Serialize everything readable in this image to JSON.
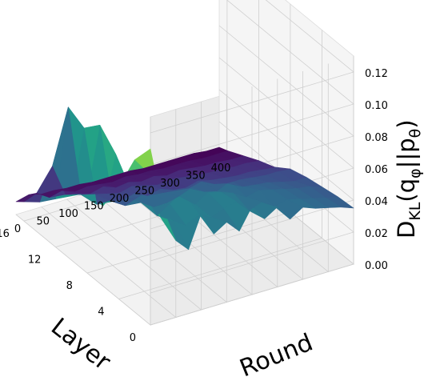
{
  "chart_data": {
    "type": "surface",
    "colormap": "viridis",
    "xlabel": "Layer",
    "ylabel": "Round",
    "zlabel": "D_KL(q_φ||p_θ)",
    "zlabel_parts": {
      "main": "D",
      "sub_kl": "KL",
      "open": "(q",
      "sub_phi": "φ",
      "mid": "||p",
      "sub_theta": "θ",
      "close": ")"
    },
    "x_ticks": [
      "0",
      "4",
      "8",
      "12",
      "16"
    ],
    "y_ticks": [
      "0",
      "50",
      "100",
      "150",
      "200",
      "250",
      "300",
      "350",
      "400"
    ],
    "z_ticks": [
      "0.00",
      "0.02",
      "0.04",
      "0.06",
      "0.08",
      "0.10",
      "0.12"
    ],
    "xlim": [
      0,
      17
    ],
    "ylim": [
      0,
      400
    ],
    "zlim": [
      0,
      0.13
    ],
    "grid": true,
    "layers": [
      0,
      2,
      4,
      6,
      8,
      10,
      12,
      14,
      16,
      17
    ],
    "rounds": [
      0,
      25,
      50,
      75,
      100,
      125,
      150,
      175,
      200,
      225,
      250,
      275,
      300,
      325,
      350,
      375,
      400
    ],
    "z": [
      [
        0.11,
        0.07,
        0.048,
        0.04,
        0.06,
        0.045,
        0.05,
        0.042,
        0.055,
        0.045,
        0.05,
        0.04,
        0.045,
        0.042,
        0.04,
        0.038,
        0.035
      ],
      [
        0.095,
        0.085,
        0.055,
        0.05,
        0.045,
        0.05,
        0.045,
        0.048,
        0.05,
        0.042,
        0.045,
        0.04,
        0.042,
        0.04,
        0.038,
        0.036,
        0.034
      ],
      [
        0.07,
        0.065,
        0.06,
        0.045,
        0.05,
        0.055,
        0.045,
        0.05,
        0.048,
        0.045,
        0.04,
        0.042,
        0.04,
        0.038,
        0.036,
        0.035,
        0.032
      ],
      [
        0.05,
        0.08,
        0.05,
        0.045,
        0.04,
        0.04,
        0.042,
        0.045,
        0.04,
        0.038,
        0.042,
        0.036,
        0.035,
        0.034,
        0.032,
        0.03,
        0.03
      ],
      [
        0.05,
        0.09,
        0.04,
        0.035,
        0.038,
        0.04,
        0.036,
        0.035,
        0.034,
        0.036,
        0.032,
        0.03,
        0.03,
        0.029,
        0.028,
        0.028,
        0.027
      ],
      [
        0.04,
        0.08,
        0.03,
        0.03,
        0.028,
        0.03,
        0.026,
        0.028,
        0.025,
        0.024,
        0.026,
        0.024,
        0.023,
        0.022,
        0.022,
        0.021,
        0.02
      ],
      [
        0.03,
        0.085,
        0.028,
        0.026,
        0.024,
        0.022,
        0.024,
        0.022,
        0.02,
        0.021,
        0.02,
        0.019,
        0.018,
        0.018,
        0.017,
        0.017,
        0.016
      ],
      [
        0.02,
        0.04,
        0.02,
        0.018,
        0.016,
        0.018,
        0.015,
        0.016,
        0.014,
        0.015,
        0.013,
        0.014,
        0.013,
        0.012,
        0.012,
        0.011,
        0.011
      ],
      [
        0.012,
        0.015,
        0.01,
        0.012,
        0.009,
        0.01,
        0.009,
        0.008,
        0.009,
        0.008,
        0.008,
        0.007,
        0.007,
        0.007,
        0.006,
        0.006,
        0.006
      ],
      [
        0.008,
        0.01,
        0.008,
        0.008,
        0.007,
        0.007,
        0.006,
        0.006,
        0.006,
        0.006,
        0.005,
        0.005,
        0.005,
        0.005,
        0.005,
        0.004,
        0.004
      ]
    ]
  }
}
